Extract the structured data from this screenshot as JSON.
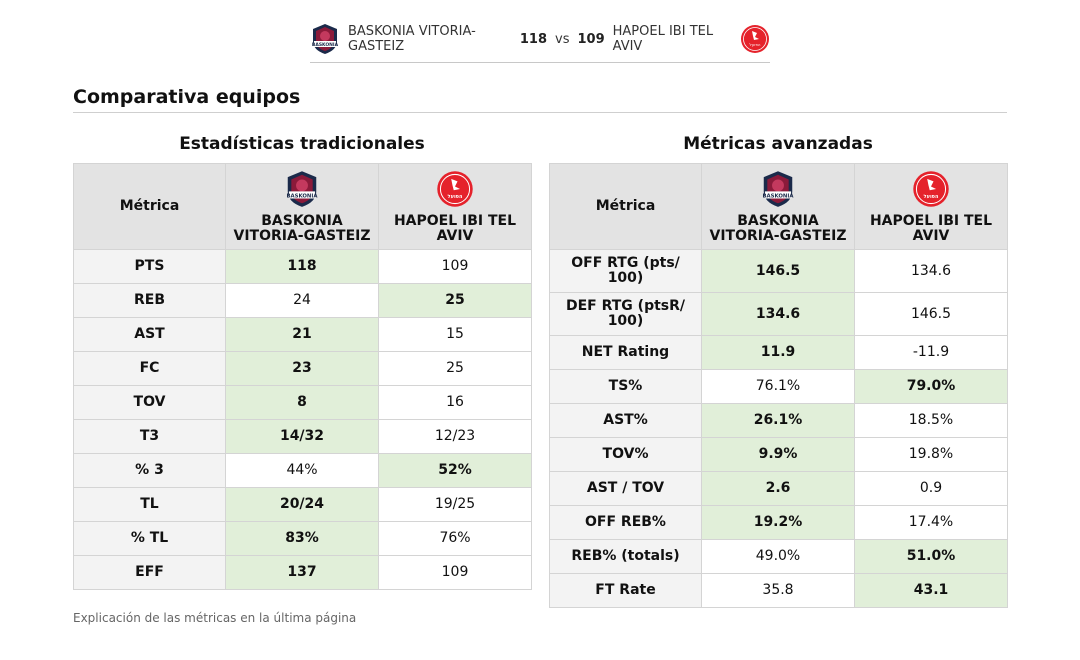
{
  "header": {
    "home_team": "BASKONIA VITORIA-GASTEIZ",
    "home_score": "118",
    "vs": "vs",
    "away_score": "109",
    "away_team": "HAPOEL IBI TEL AVIV",
    "home_logo_text": "BASKONIA",
    "away_logo_text": "הפועל"
  },
  "section_title": "Comparativa equipos",
  "traditional": {
    "title": "Estadísticas tradicionales",
    "col_metric": "Métrica",
    "col_home": "BASKONIA VITORIA-GASTEIZ",
    "col_away": "HAPOEL IBI TEL AVIV",
    "rows": [
      {
        "metric": "PTS",
        "home": "118",
        "away": "109",
        "winner": "home"
      },
      {
        "metric": "REB",
        "home": "24",
        "away": "25",
        "winner": "away"
      },
      {
        "metric": "AST",
        "home": "21",
        "away": "15",
        "winner": "home"
      },
      {
        "metric": "FC",
        "home": "23",
        "away": "25",
        "winner": "home"
      },
      {
        "metric": "TOV",
        "home": "8",
        "away": "16",
        "winner": "home"
      },
      {
        "metric": "T3",
        "home": "14/32",
        "away": "12/23",
        "winner": "home"
      },
      {
        "metric": "% 3",
        "home": "44%",
        "away": "52%",
        "winner": "away"
      },
      {
        "metric": "TL",
        "home": "20/24",
        "away": "19/25",
        "winner": "home"
      },
      {
        "metric": "% TL",
        "home": "83%",
        "away": "76%",
        "winner": "home"
      },
      {
        "metric": "EFF",
        "home": "137",
        "away": "109",
        "winner": "home"
      }
    ]
  },
  "advanced": {
    "title": "Métricas avanzadas",
    "col_metric": "Métrica",
    "col_home": "BASKONIA VITORIA-GASTEIZ",
    "col_away": "HAPOEL IBI TEL AVIV",
    "rows": [
      {
        "metric": "OFF RTG (pts/ 100)",
        "home": "146.5",
        "away": "134.6",
        "winner": "home",
        "tall": true
      },
      {
        "metric": "DEF RTG (ptsR/ 100)",
        "home": "134.6",
        "away": "146.5",
        "winner": "home",
        "tall": true
      },
      {
        "metric": "NET Rating",
        "home": "11.9",
        "away": "-11.9",
        "winner": "home"
      },
      {
        "metric": "TS%",
        "home": "76.1%",
        "away": "79.0%",
        "winner": "away"
      },
      {
        "metric": "AST%",
        "home": "26.1%",
        "away": "18.5%",
        "winner": "home"
      },
      {
        "metric": "TOV%",
        "home": "9.9%",
        "away": "19.8%",
        "winner": "home"
      },
      {
        "metric": "AST / TOV",
        "home": "2.6",
        "away": "0.9",
        "winner": "home"
      },
      {
        "metric": "OFF REB%",
        "home": "19.2%",
        "away": "17.4%",
        "winner": "home"
      },
      {
        "metric": "REB% (totals)",
        "home": "49.0%",
        "away": "51.0%",
        "winner": "away"
      },
      {
        "metric": "FT Rate",
        "home": "35.8",
        "away": "43.1",
        "winner": "away"
      }
    ]
  },
  "footnote": "Explicación de las métricas en la última página",
  "colors": {
    "winner_bg": "#e1efd9",
    "header_bg": "#e3e3e3",
    "metric_bg": "#f3f3f3",
    "baskonia_primary": "#8b1a3a",
    "baskonia_secondary": "#1b2a4a",
    "hapoel_red": "#e5222b"
  }
}
